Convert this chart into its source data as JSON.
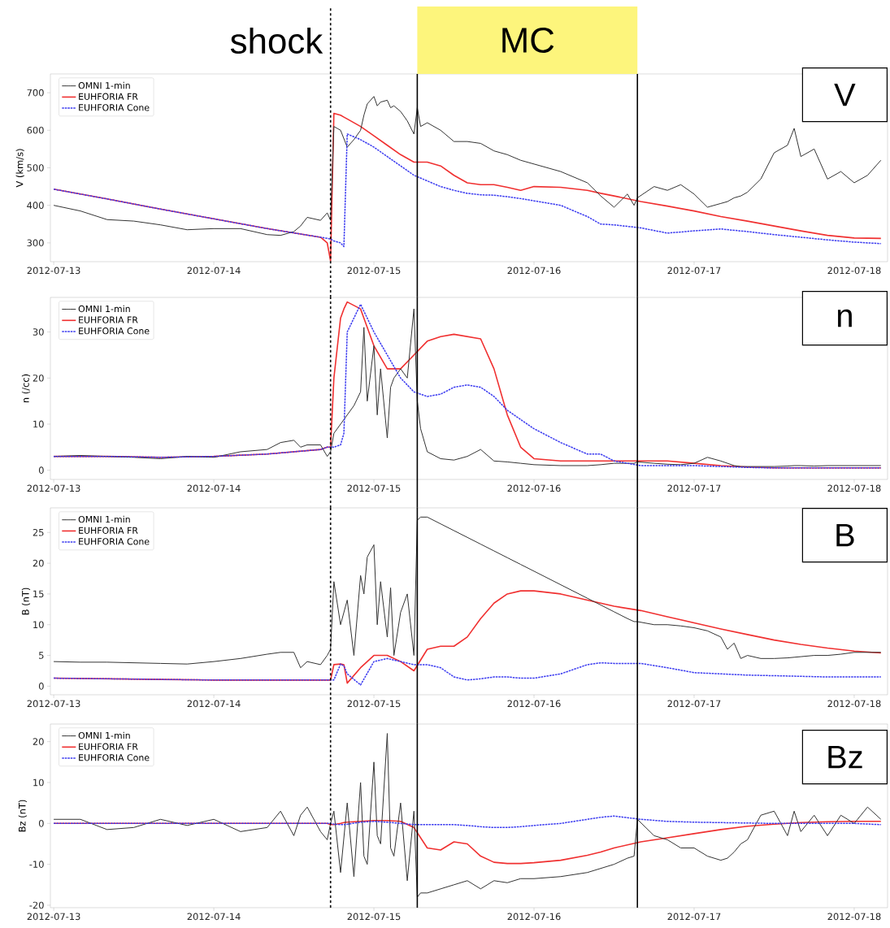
{
  "chart_data": [
    {
      "type": "line",
      "ylabel": "V (km/s)",
      "xlim": [
        "2012-07-12T23:30",
        "2012-07-18T05:00"
      ],
      "ylim": [
        250,
        750
      ],
      "xticks": [
        "2012-07-13",
        "2012-07-14",
        "2012-07-15",
        "2012-07-16",
        "2012-07-17",
        "2012-07-18"
      ],
      "yticks": [
        300,
        400,
        500,
        600,
        700
      ],
      "legend": "top left",
      "annotations": [
        "V",
        "MC"
      ],
      "ref_lines": [
        {
          "axis": "x",
          "value": "2012-07-14T17:30",
          "label": "shock",
          "line_style": "dashed"
        },
        {
          "axis": "x",
          "value": "2012-07-15T06:30",
          "line_style": "solid"
        },
        {
          "axis": "x",
          "value": "2012-07-16T15:30",
          "line_style": "solid"
        }
      ],
      "x": [
        "2012-07-13T00:00",
        "2012-07-13T08:00",
        "2012-07-13T16:00",
        "2012-07-14T00:00",
        "2012-07-14T08:00",
        "2012-07-14T16:00",
        "2012-07-14T17:00",
        "2012-07-14T17:30",
        "2012-07-14T18:00",
        "2012-07-14T19:00",
        "2012-07-14T19:30",
        "2012-07-14T20:00",
        "2012-07-14T22:00",
        "2012-07-15T00:00",
        "2012-07-15T02:00",
        "2012-07-15T04:00",
        "2012-07-15T06:00",
        "2012-07-15T08:00",
        "2012-07-15T10:00",
        "2012-07-15T12:00",
        "2012-07-15T14:00",
        "2012-07-15T16:00",
        "2012-07-15T18:00",
        "2012-07-15T20:00",
        "2012-07-15T22:00",
        "2012-07-16T00:00",
        "2012-07-16T04:00",
        "2012-07-16T08:00",
        "2012-07-16T10:00",
        "2012-07-16T12:00",
        "2012-07-16T16:00",
        "2012-07-16T20:00",
        "2012-07-17T00:00",
        "2012-07-17T04:00",
        "2012-07-17T08:00",
        "2012-07-17T12:00",
        "2012-07-17T16:00",
        "2012-07-17T20:00",
        "2012-07-18T00:00",
        "2012-07-18T04:00"
      ],
      "series": [
        {
          "name": "OMNI 1-min",
          "color": "#333333",
          "line_style": "solid",
          "x": [
            "2012-07-13T00:00",
            "2012-07-13T04:00",
            "2012-07-13T08:00",
            "2012-07-13T12:00",
            "2012-07-13T16:00",
            "2012-07-13T20:00",
            "2012-07-14T00:00",
            "2012-07-14T04:00",
            "2012-07-14T08:00",
            "2012-07-14T10:00",
            "2012-07-14T12:00",
            "2012-07-14T13:00",
            "2012-07-14T14:00",
            "2012-07-14T16:00",
            "2012-07-14T17:00",
            "2012-07-14T17:30",
            "2012-07-14T18:00",
            "2012-07-14T19:00",
            "2012-07-14T20:00",
            "2012-07-14T21:00",
            "2012-07-14T22:00",
            "2012-07-14T22:30",
            "2012-07-14T23:00",
            "2012-07-15T00:00",
            "2012-07-15T00:30",
            "2012-07-15T01:00",
            "2012-07-15T02:00",
            "2012-07-15T02:30",
            "2012-07-15T03:00",
            "2012-07-15T04:00",
            "2012-07-15T05:00",
            "2012-07-15T06:00",
            "2012-07-15T06:30",
            "2012-07-15T07:00",
            "2012-07-15T08:00",
            "2012-07-15T10:00",
            "2012-07-15T12:00",
            "2012-07-15T14:00",
            "2012-07-15T16:00",
            "2012-07-15T18:00",
            "2012-07-15T20:00",
            "2012-07-15T22:00",
            "2012-07-16T00:00",
            "2012-07-16T04:00",
            "2012-07-16T08:00",
            "2012-07-16T10:00",
            "2012-07-16T12:00",
            "2012-07-16T14:00",
            "2012-07-16T15:00",
            "2012-07-16T15:30",
            "2012-07-16T18:00",
            "2012-07-16T20:00",
            "2012-07-16T22:00",
            "2012-07-17T00:00",
            "2012-07-17T02:00",
            "2012-07-17T04:00",
            "2012-07-17T05:00",
            "2012-07-17T06:00",
            "2012-07-17T07:00",
            "2012-07-17T08:00",
            "2012-07-17T10:00",
            "2012-07-17T12:00",
            "2012-07-17T14:00",
            "2012-07-17T15:00",
            "2012-07-17T16:00",
            "2012-07-17T18:00",
            "2012-07-17T20:00",
            "2012-07-17T22:00",
            "2012-07-18T00:00",
            "2012-07-18T02:00",
            "2012-07-18T04:00"
          ],
          "values": [
            400,
            385,
            362,
            358,
            348,
            335,
            338,
            338,
            322,
            320,
            330,
            345,
            368,
            360,
            380,
            360,
            610,
            600,
            555,
            575,
            600,
            640,
            670,
            690,
            665,
            675,
            680,
            660,
            665,
            650,
            625,
            590,
            660,
            610,
            620,
            600,
            570,
            570,
            565,
            545,
            535,
            520,
            510,
            490,
            460,
            425,
            395,
            430,
            400,
            420,
            450,
            440,
            455,
            430,
            395,
            405,
            410,
            420,
            425,
            435,
            470,
            540,
            560,
            605,
            530,
            550,
            470,
            490,
            460,
            480,
            520
          ]
        },
        {
          "name": "EUHFORIA FR",
          "color": "#f03030",
          "line_style": "solid",
          "values": [
            443,
            417,
            390,
            364,
            338,
            315,
            300,
            252,
            645,
            640,
            635,
            630,
            610,
            585,
            560,
            535,
            515,
            515,
            505,
            480,
            460,
            455,
            455,
            448,
            440,
            450,
            448,
            440,
            432,
            425,
            410,
            398,
            385,
            370,
            358,
            345,
            332,
            320,
            313,
            312
          ]
        },
        {
          "name": "EUHFORIA Cone",
          "color": "#3b3bf0",
          "line_style": "dashed",
          "values": [
            443,
            417,
            390,
            364,
            338,
            315,
            312,
            310,
            305,
            300,
            290,
            590,
            575,
            555,
            530,
            505,
            480,
            465,
            450,
            440,
            432,
            428,
            427,
            423,
            418,
            412,
            400,
            370,
            350,
            348,
            340,
            326,
            332,
            337,
            330,
            322,
            315,
            308,
            302,
            298
          ]
        }
      ]
    },
    {
      "type": "line",
      "ylabel": "n (/cc)",
      "xlim": [
        "2012-07-12T23:30",
        "2012-07-18T05:00"
      ],
      "ylim": [
        -2,
        37.5
      ],
      "xticks": [
        "2012-07-13",
        "2012-07-14",
        "2012-07-15",
        "2012-07-16",
        "2012-07-17",
        "2012-07-18"
      ],
      "yticks": [
        0,
        10,
        20,
        30
      ],
      "legend": "top left",
      "annotations": [
        "n"
      ],
      "ref_lines": [
        {
          "axis": "x",
          "value": "2012-07-14T17:30",
          "line_style": "dashed"
        },
        {
          "axis": "x",
          "value": "2012-07-15T06:30",
          "line_style": "solid"
        },
        {
          "axis": "x",
          "value": "2012-07-16T15:30",
          "line_style": "solid"
        }
      ],
      "x": [
        "2012-07-13T00:00",
        "2012-07-13T08:00",
        "2012-07-13T16:00",
        "2012-07-14T00:00",
        "2012-07-14T08:00",
        "2012-07-14T16:00",
        "2012-07-14T17:00",
        "2012-07-14T17:30",
        "2012-07-14T18:00",
        "2012-07-14T19:00",
        "2012-07-14T19:30",
        "2012-07-14T20:00",
        "2012-07-14T22:00",
        "2012-07-15T00:00",
        "2012-07-15T02:00",
        "2012-07-15T04:00",
        "2012-07-15T06:00",
        "2012-07-15T08:00",
        "2012-07-15T10:00",
        "2012-07-15T12:00",
        "2012-07-15T14:00",
        "2012-07-15T16:00",
        "2012-07-15T18:00",
        "2012-07-15T20:00",
        "2012-07-15T22:00",
        "2012-07-16T00:00",
        "2012-07-16T04:00",
        "2012-07-16T08:00",
        "2012-07-16T10:00",
        "2012-07-16T12:00",
        "2012-07-16T16:00",
        "2012-07-16T20:00",
        "2012-07-17T00:00",
        "2012-07-17T04:00",
        "2012-07-17T08:00",
        "2012-07-17T12:00",
        "2012-07-17T16:00",
        "2012-07-17T20:00",
        "2012-07-18T00:00",
        "2012-07-18T04:00"
      ],
      "series": [
        {
          "name": "OMNI 1-min",
          "color": "#333333",
          "line_style": "solid",
          "x": [
            "2012-07-13T00:00",
            "2012-07-13T04:00",
            "2012-07-13T08:00",
            "2012-07-13T12:00",
            "2012-07-13T16:00",
            "2012-07-13T20:00",
            "2012-07-14T00:00",
            "2012-07-14T04:00",
            "2012-07-14T08:00",
            "2012-07-14T10:00",
            "2012-07-14T12:00",
            "2012-07-14T13:00",
            "2012-07-14T14:00",
            "2012-07-14T16:00",
            "2012-07-14T17:00",
            "2012-07-14T17:30",
            "2012-07-14T18:00",
            "2012-07-14T19:00",
            "2012-07-14T20:00",
            "2012-07-14T21:00",
            "2012-07-14T22:00",
            "2012-07-14T22:30",
            "2012-07-14T23:00",
            "2012-07-15T00:00",
            "2012-07-15T00:30",
            "2012-07-15T01:00",
            "2012-07-15T02:00",
            "2012-07-15T02:30",
            "2012-07-15T03:00",
            "2012-07-15T04:00",
            "2012-07-15T05:00",
            "2012-07-15T06:00",
            "2012-07-15T06:30",
            "2012-07-15T07:00",
            "2012-07-15T08:00",
            "2012-07-15T10:00",
            "2012-07-15T12:00",
            "2012-07-15T14:00",
            "2012-07-15T16:00",
            "2012-07-15T18:00",
            "2012-07-15T20:00",
            "2012-07-15T22:00",
            "2012-07-16T00:00",
            "2012-07-16T04:00",
            "2012-07-16T08:00",
            "2012-07-16T10:00",
            "2012-07-16T12:00",
            "2012-07-16T14:00",
            "2012-07-16T15:00",
            "2012-07-16T15:30",
            "2012-07-16T18:00",
            "2012-07-16T20:00",
            "2012-07-16T22:00",
            "2012-07-17T00:00",
            "2012-07-17T02:00",
            "2012-07-17T04:00",
            "2012-07-17T05:00",
            "2012-07-17T06:00",
            "2012-07-17T07:00",
            "2012-07-17T08:00",
            "2012-07-17T10:00",
            "2012-07-17T12:00",
            "2012-07-17T14:00",
            "2012-07-17T15:00",
            "2012-07-17T16:00",
            "2012-07-17T18:00",
            "2012-07-17T20:00",
            "2012-07-17T22:00",
            "2012-07-18T00:00",
            "2012-07-18T02:00",
            "2012-07-18T04:00"
          ],
          "values": [
            3,
            3.2,
            3,
            2.8,
            2.5,
            3,
            2.8,
            4,
            4.5,
            6,
            6.5,
            5,
            5.5,
            5.5,
            3,
            4,
            8,
            10,
            12,
            14,
            17,
            31,
            15,
            27,
            12,
            22,
            7,
            18,
            20,
            22,
            20,
            35,
            15,
            9,
            4,
            2.5,
            2.2,
            3,
            4.5,
            2,
            1.8,
            1.5,
            1.2,
            1,
            1,
            1.2,
            1.5,
            1.5,
            1.5,
            1.8,
            1.5,
            1.3,
            1.2,
            1.5,
            2.8,
            2,
            1.5,
            1,
            0.8,
            0.8,
            0.8,
            0.8,
            0.9,
            1,
            1,
            0.9,
            1,
            1,
            1,
            1,
            1
          ]
        },
        {
          "name": "EUHFORIA FR",
          "color": "#f03030",
          "line_style": "solid",
          "values": [
            3,
            3,
            2.8,
            3,
            3.5,
            4.5,
            5,
            5,
            20,
            33,
            35,
            36.5,
            35,
            27,
            22,
            22,
            25,
            28,
            29,
            29.5,
            29,
            28.5,
            22,
            12,
            5,
            2.5,
            2,
            2,
            2,
            2,
            2,
            2,
            1.5,
            1,
            0.7,
            0.5,
            0.5,
            0.5,
            0.5,
            0.5
          ]
        },
        {
          "name": "EUHFORIA Cone",
          "color": "#3b3bf0",
          "line_style": "dashed",
          "values": [
            3,
            3,
            2.8,
            3,
            3.5,
            4.5,
            5,
            5,
            5,
            5.5,
            8,
            30,
            36,
            30,
            25,
            20,
            17,
            16,
            16.5,
            18,
            18.5,
            18,
            16,
            13,
            11,
            9,
            6,
            3.5,
            3.5,
            2,
            1,
            1,
            1,
            0.8,
            0.6,
            0.5,
            0.5,
            0.5,
            0.5,
            0.5
          ]
        }
      ]
    },
    {
      "type": "line",
      "ylabel": "B (nT)",
      "xlim": [
        "2012-07-12T23:30",
        "2012-07-18T05:00"
      ],
      "ylim": [
        -1.4,
        29
      ],
      "xticks": [
        "2012-07-13",
        "2012-07-14",
        "2012-07-15",
        "2012-07-16",
        "2012-07-17",
        "2012-07-18"
      ],
      "yticks": [
        0,
        5,
        10,
        15,
        20,
        25
      ],
      "legend": "top left",
      "annotations": [
        "B"
      ],
      "ref_lines": [
        {
          "axis": "x",
          "value": "2012-07-14T17:30",
          "line_style": "dashed"
        },
        {
          "axis": "x",
          "value": "2012-07-15T06:30",
          "line_style": "solid"
        },
        {
          "axis": "x",
          "value": "2012-07-16T15:30",
          "line_style": "solid"
        }
      ],
      "x": [
        "2012-07-13T00:00",
        "2012-07-13T08:00",
        "2012-07-13T16:00",
        "2012-07-14T00:00",
        "2012-07-14T08:00",
        "2012-07-14T16:00",
        "2012-07-14T17:00",
        "2012-07-14T17:30",
        "2012-07-14T18:00",
        "2012-07-14T19:00",
        "2012-07-14T19:30",
        "2012-07-14T20:00",
        "2012-07-14T22:00",
        "2012-07-15T00:00",
        "2012-07-15T02:00",
        "2012-07-15T04:00",
        "2012-07-15T06:00",
        "2012-07-15T08:00",
        "2012-07-15T10:00",
        "2012-07-15T12:00",
        "2012-07-15T14:00",
        "2012-07-15T16:00",
        "2012-07-15T18:00",
        "2012-07-15T20:00",
        "2012-07-15T22:00",
        "2012-07-16T00:00",
        "2012-07-16T04:00",
        "2012-07-16T08:00",
        "2012-07-16T10:00",
        "2012-07-16T12:00",
        "2012-07-16T16:00",
        "2012-07-16T20:00",
        "2012-07-17T00:00",
        "2012-07-17T04:00",
        "2012-07-17T08:00",
        "2012-07-17T12:00",
        "2012-07-17T16:00",
        "2012-07-17T20:00",
        "2012-07-18T00:00",
        "2012-07-18T04:00"
      ],
      "series": [
        {
          "name": "OMNI 1-min",
          "color": "#333333",
          "line_style": "solid",
          "x": [
            "2012-07-13T00:00",
            "2012-07-13T04:00",
            "2012-07-13T08:00",
            "2012-07-13T12:00",
            "2012-07-13T16:00",
            "2012-07-13T20:00",
            "2012-07-14T00:00",
            "2012-07-14T04:00",
            "2012-07-14T08:00",
            "2012-07-14T10:00",
            "2012-07-14T12:00",
            "2012-07-14T13:00",
            "2012-07-14T14:00",
            "2012-07-14T16:00",
            "2012-07-14T17:00",
            "2012-07-14T17:30",
            "2012-07-14T18:00",
            "2012-07-14T19:00",
            "2012-07-14T20:00",
            "2012-07-14T21:00",
            "2012-07-14T22:00",
            "2012-07-14T22:30",
            "2012-07-14T23:00",
            "2012-07-15T00:00",
            "2012-07-15T00:30",
            "2012-07-15T01:00",
            "2012-07-15T02:00",
            "2012-07-15T02:30",
            "2012-07-15T03:00",
            "2012-07-15T04:00",
            "2012-07-15T05:00",
            "2012-07-15T06:00",
            "2012-07-15T06:30",
            "2012-07-15T07:00",
            "2012-07-15T08:00",
            "2012-07-15T10:00",
            "2012-07-15T12:00",
            "2012-07-15T14:00",
            "2012-07-15T16:00",
            "2012-07-15T18:00",
            "2012-07-15T20:00",
            "2012-07-15T22:00",
            "2012-07-16T00:00",
            "2012-07-16T04:00",
            "2012-07-16T08:00",
            "2012-07-16T10:00",
            "2012-07-16T12:00",
            "2012-07-16T14:00",
            "2012-07-16T15:00",
            "2012-07-16T15:30",
            "2012-07-16T18:00",
            "2012-07-16T20:00",
            "2012-07-16T22:00",
            "2012-07-17T00:00",
            "2012-07-17T02:00",
            "2012-07-17T04:00",
            "2012-07-17T05:00",
            "2012-07-17T06:00",
            "2012-07-17T07:00",
            "2012-07-17T08:00",
            "2012-07-17T10:00",
            "2012-07-17T12:00",
            "2012-07-17T14:00",
            "2012-07-17T15:00",
            "2012-07-17T16:00",
            "2012-07-17T18:00",
            "2012-07-17T20:00",
            "2012-07-17T22:00",
            "2012-07-18T00:00",
            "2012-07-18T02:00",
            "2012-07-18T04:00"
          ],
          "values": [
            4,
            3.9,
            3.9,
            3.8,
            3.7,
            3.6,
            4,
            4.5,
            5.2,
            5.5,
            5.5,
            3,
            4,
            3.5,
            5,
            6,
            17,
            10,
            14,
            5,
            18,
            15,
            21,
            23,
            10,
            17,
            8,
            16,
            5,
            12,
            15,
            5,
            27,
            27.5,
            27.5,
            26.4,
            25.3,
            24.2,
            23.1,
            22,
            20.9,
            19.8,
            18.7,
            16.5,
            14.3,
            13.2,
            12.1,
            11,
            10.5,
            10.5,
            10,
            10,
            9.8,
            9.5,
            9,
            8,
            6,
            7,
            4.5,
            5,
            4.5,
            4.5,
            4.6,
            4.7,
            4.8,
            5,
            5,
            5.2,
            5.5,
            5.5,
            5.5
          ]
        },
        {
          "name": "EUHFORIA FR",
          "color": "#f03030",
          "line_style": "solid",
          "values": [
            1.3,
            1.2,
            1.1,
            1,
            1,
            1,
            1,
            1,
            3.5,
            3.6,
            3.5,
            0.5,
            3,
            5,
            5,
            4,
            2.5,
            6,
            6.5,
            6.5,
            8,
            11,
            13.5,
            15,
            15.5,
            15.5,
            15,
            14,
            13.5,
            13,
            12.3,
            11.3,
            10.3,
            9.3,
            8.4,
            7.5,
            6.8,
            6.2,
            5.7,
            5.4
          ]
        },
        {
          "name": "EUHFORIA Cone",
          "color": "#3b3bf0",
          "line_style": "dashed",
          "values": [
            1.3,
            1.2,
            1.1,
            1,
            1,
            1,
            1,
            1,
            1,
            3.6,
            3.3,
            2,
            0.2,
            4,
            4.5,
            4,
            3.5,
            3.5,
            3,
            1.5,
            1,
            1.2,
            1.5,
            1.5,
            1.3,
            1.3,
            2,
            3.5,
            3.8,
            3.7,
            3.7,
            3,
            2.2,
            2,
            1.8,
            1.7,
            1.6,
            1.5,
            1.5,
            1.5
          ]
        }
      ]
    },
    {
      "type": "line",
      "ylabel": "Bz (nT)",
      "xlim": [
        "2012-07-12T23:30",
        "2012-07-18T05:00"
      ],
      "ylim": [
        -20.6,
        24.3
      ],
      "xticks": [
        "2012-07-13",
        "2012-07-14",
        "2012-07-15",
        "2012-07-16",
        "2012-07-17",
        "2012-07-18"
      ],
      "yticks": [
        -20,
        -10,
        0,
        10,
        20
      ],
      "legend": "top left",
      "annotations": [
        "Bz"
      ],
      "ref_lines": [
        {
          "axis": "x",
          "value": "2012-07-14T17:30",
          "line_style": "dashed"
        },
        {
          "axis": "x",
          "value": "2012-07-15T06:30",
          "line_style": "solid"
        },
        {
          "axis": "x",
          "value": "2012-07-16T15:30",
          "line_style": "solid"
        }
      ],
      "x": [
        "2012-07-13T00:00",
        "2012-07-13T08:00",
        "2012-07-13T16:00",
        "2012-07-14T00:00",
        "2012-07-14T08:00",
        "2012-07-14T16:00",
        "2012-07-14T17:00",
        "2012-07-14T17:30",
        "2012-07-14T18:00",
        "2012-07-14T19:00",
        "2012-07-14T19:30",
        "2012-07-14T20:00",
        "2012-07-14T22:00",
        "2012-07-15T00:00",
        "2012-07-15T02:00",
        "2012-07-15T04:00",
        "2012-07-15T06:00",
        "2012-07-15T08:00",
        "2012-07-15T10:00",
        "2012-07-15T12:00",
        "2012-07-15T14:00",
        "2012-07-15T16:00",
        "2012-07-15T18:00",
        "2012-07-15T20:00",
        "2012-07-15T22:00",
        "2012-07-16T00:00",
        "2012-07-16T04:00",
        "2012-07-16T08:00",
        "2012-07-16T10:00",
        "2012-07-16T12:00",
        "2012-07-16T16:00",
        "2012-07-16T20:00",
        "2012-07-17T00:00",
        "2012-07-17T04:00",
        "2012-07-17T08:00",
        "2012-07-17T12:00",
        "2012-07-17T16:00",
        "2012-07-17T20:00",
        "2012-07-18T00:00",
        "2012-07-18T04:00"
      ],
      "series": [
        {
          "name": "OMNI 1-min",
          "color": "#333333",
          "line_style": "solid",
          "x": [
            "2012-07-13T00:00",
            "2012-07-13T04:00",
            "2012-07-13T08:00",
            "2012-07-13T12:00",
            "2012-07-13T16:00",
            "2012-07-13T20:00",
            "2012-07-14T00:00",
            "2012-07-14T04:00",
            "2012-07-14T08:00",
            "2012-07-14T10:00",
            "2012-07-14T12:00",
            "2012-07-14T13:00",
            "2012-07-14T14:00",
            "2012-07-14T16:00",
            "2012-07-14T17:00",
            "2012-07-14T17:30",
            "2012-07-14T18:00",
            "2012-07-14T19:00",
            "2012-07-14T20:00",
            "2012-07-14T21:00",
            "2012-07-14T22:00",
            "2012-07-14T22:30",
            "2012-07-14T23:00",
            "2012-07-15T00:00",
            "2012-07-15T00:30",
            "2012-07-15T01:00",
            "2012-07-15T02:00",
            "2012-07-15T02:30",
            "2012-07-15T03:00",
            "2012-07-15T04:00",
            "2012-07-15T05:00",
            "2012-07-15T06:00",
            "2012-07-15T06:30",
            "2012-07-15T07:00",
            "2012-07-15T08:00",
            "2012-07-15T10:00",
            "2012-07-15T12:00",
            "2012-07-15T14:00",
            "2012-07-15T16:00",
            "2012-07-15T18:00",
            "2012-07-15T20:00",
            "2012-07-15T22:00",
            "2012-07-16T00:00",
            "2012-07-16T04:00",
            "2012-07-16T08:00",
            "2012-07-16T10:00",
            "2012-07-16T12:00",
            "2012-07-16T14:00",
            "2012-07-16T15:00",
            "2012-07-16T15:30",
            "2012-07-16T18:00",
            "2012-07-16T20:00",
            "2012-07-16T22:00",
            "2012-07-17T00:00",
            "2012-07-17T02:00",
            "2012-07-17T04:00",
            "2012-07-17T05:00",
            "2012-07-17T06:00",
            "2012-07-17T07:00",
            "2012-07-17T08:00",
            "2012-07-17T10:00",
            "2012-07-17T12:00",
            "2012-07-17T14:00",
            "2012-07-17T15:00",
            "2012-07-17T16:00",
            "2012-07-17T18:00",
            "2012-07-17T20:00",
            "2012-07-17T22:00",
            "2012-07-18T00:00",
            "2012-07-18T02:00",
            "2012-07-18T04:00"
          ],
          "values": [
            1,
            1,
            -1.5,
            -1,
            1,
            -0.5,
            1,
            -2,
            -1,
            3,
            -3,
            2,
            4,
            -2,
            -4,
            0,
            3,
            -12,
            5,
            -13,
            10,
            -8,
            -10,
            15,
            -3,
            -5,
            22,
            -6,
            -8,
            5,
            -14,
            3,
            -18,
            -17,
            -17,
            -16,
            -15,
            -14,
            -16,
            -14,
            -14.5,
            -13.5,
            -13.5,
            -13,
            -12,
            -11,
            -10,
            -8.5,
            -8,
            1,
            -3,
            -4,
            -6,
            -6,
            -8,
            -9,
            -8.5,
            -7,
            -5,
            -4,
            2,
            3,
            -3,
            3,
            -2,
            2,
            -3,
            2,
            0,
            4,
            1
          ]
        },
        {
          "name": "EUHFORIA FR",
          "color": "#f03030",
          "line_style": "solid",
          "values": [
            0,
            0,
            0,
            0,
            0,
            0,
            0,
            -0.3,
            -0.3,
            0,
            0.2,
            0.3,
            0.5,
            0.7,
            0.7,
            0.5,
            -1,
            -6,
            -6.5,
            -4.5,
            -5,
            -8,
            -9.5,
            -9.8,
            -9.8,
            -9.6,
            -9,
            -7.8,
            -7,
            -6,
            -4.5,
            -3.5,
            -2.5,
            -1.5,
            -0.7,
            -0.2,
            0.2,
            0.4,
            0.5,
            0.5
          ]
        },
        {
          "name": "EUHFORIA Cone",
          "color": "#3b3bf0",
          "line_style": "dashed",
          "values": [
            0,
            0,
            0,
            0,
            0,
            0,
            0,
            0,
            -0.2,
            -0.3,
            -0.3,
            -0.2,
            0.3,
            0.5,
            0.3,
            0,
            -0.3,
            -0.3,
            -0.3,
            -0.3,
            -0.5,
            -0.8,
            -1,
            -1,
            -0.8,
            -0.5,
            0,
            1,
            1.5,
            1.8,
            1,
            0.5,
            0.3,
            0.2,
            0.1,
            0,
            0,
            0,
            0,
            -0.3
          ]
        }
      ]
    }
  ]
}
